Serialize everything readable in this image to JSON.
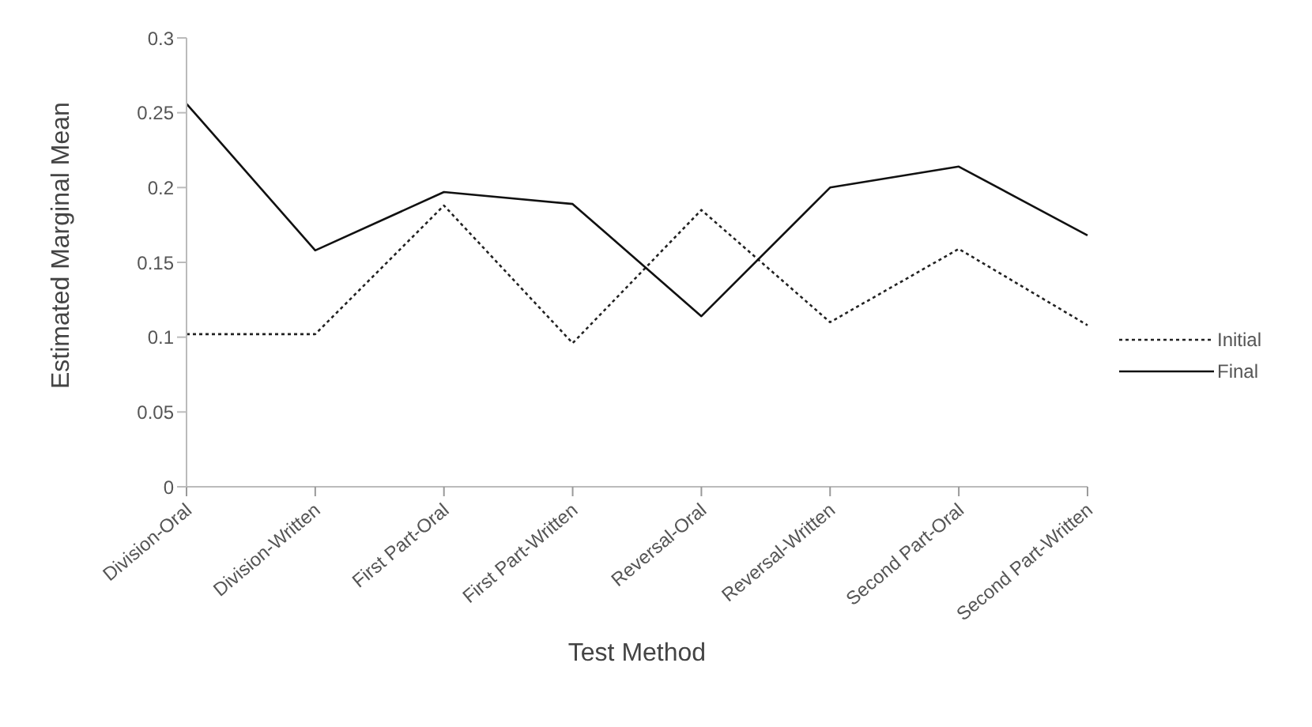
{
  "chart_data": {
    "type": "line",
    "xlabel": "Test Method",
    "ylabel": "Estimated Marginal Mean",
    "categories": [
      "Division-Oral",
      "Division-Written",
      "First Part-Oral",
      "First Part-Written",
      "Reversal-Oral",
      "Reversal-Written",
      "Second Part-Oral",
      "Second Part-Written"
    ],
    "series": [
      {
        "name": "Initial",
        "color": "#222222",
        "line_style": "dotted",
        "values": [
          0.102,
          0.102,
          0.188,
          0.096,
          0.185,
          0.11,
          0.159,
          0.108
        ]
      },
      {
        "name": "Final",
        "color": "#111111",
        "line_style": "solid",
        "values": [
          0.256,
          0.158,
          0.197,
          0.189,
          0.114,
          0.2,
          0.214,
          0.168
        ]
      }
    ],
    "ylim": [
      0,
      0.3
    ],
    "yticks": [
      0,
      0.05,
      0.1,
      0.15,
      0.2,
      0.25,
      0.3
    ],
    "grid": false,
    "legend": "right",
    "marker": "none"
  }
}
